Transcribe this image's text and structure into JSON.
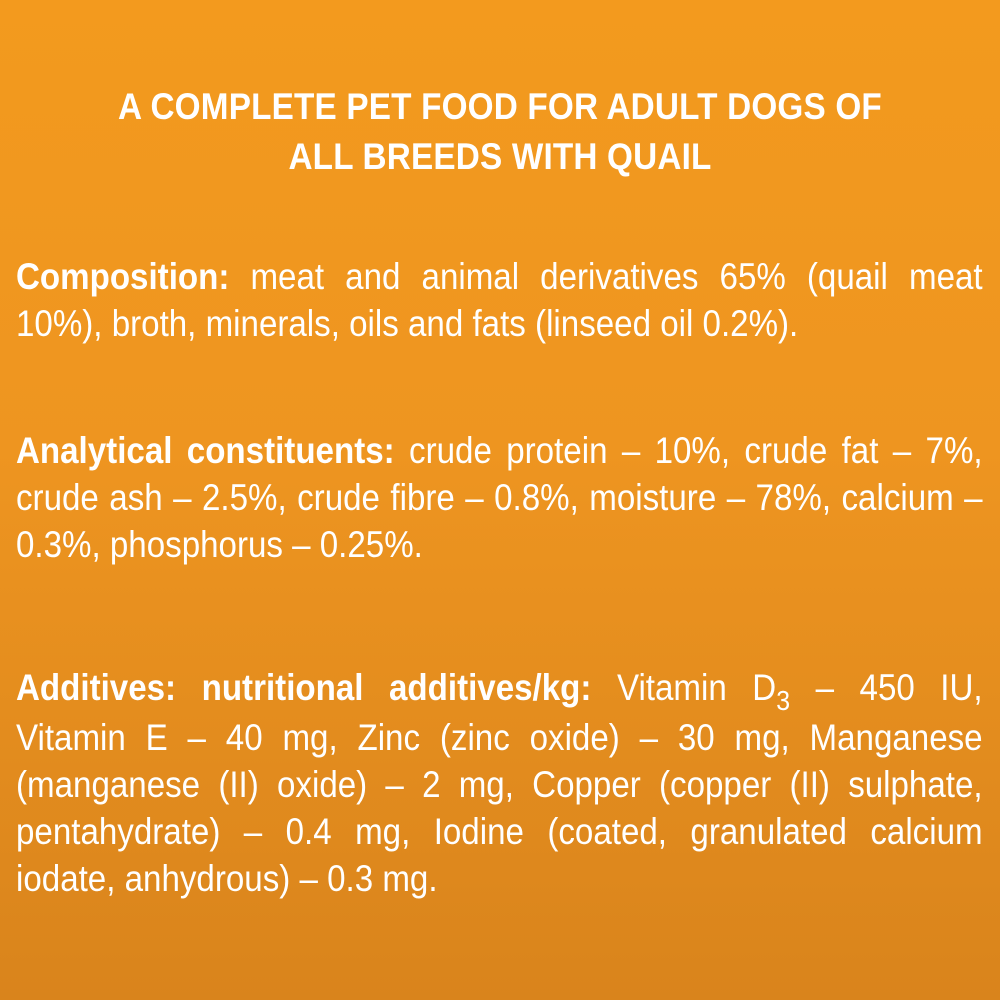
{
  "title": "A COMPLETE PET FOOD FOR ADULT DOGS OF ALL BREEDS WITH QUAIL",
  "composition": {
    "label": "Composition:",
    "text": "meat and animal derivatives 65% (quail meat 10%), broth, minerals, oils and fats (linseed oil 0.2%)."
  },
  "analytical": {
    "label": "Analytical constituents:",
    "text": "crude protein – 10%, crude fat – 7%, crude ash – 2.5%, crude fibre – 0.8%, moisture – 78%, calcium – 0.3%, phosphorus – 0.25%."
  },
  "additives": {
    "label": "Additives: nutritional additives/kg:",
    "text_before_subscript": "Vitamin D",
    "subscript": "3",
    "text_after_subscript": "– 450 IU, Vitamin E – 40 mg, Zinc (zinc oxide) – 30 mg, Manganese (manganese (II) oxide) – 2 mg, Copper (copper (II) sulphate, pentahydrate) – 0.4 mg, Iodine (coated, granulated calcium iodate, anhydrous) – 0.3 mg."
  },
  "colors": {
    "background_top": "#f39a1e",
    "background_bottom": "#d9841c",
    "text": "#ffffff"
  }
}
